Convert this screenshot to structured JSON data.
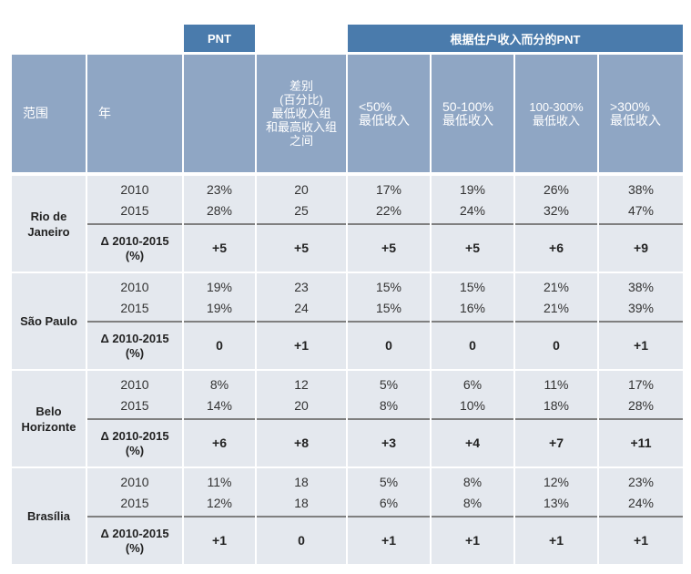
{
  "header": {
    "pnt": "PNT",
    "pnt_by_income": "根据住户收入而分的PNT",
    "columns": [
      "范围",
      "年",
      "",
      "差别\n(百分比)\n最低收入组\n和最高收入组\n之间",
      "<50%\n最低收入",
      "50-100%\n最低收入",
      "100-300%\n最低收入",
      ">300%\n最低收入"
    ]
  },
  "regions": [
    {
      "name": "Rio de\nJaneiro",
      "rows": [
        {
          "year": "2010",
          "values": [
            "23%",
            "20",
            "17%",
            "19%",
            "26%",
            "38%"
          ]
        },
        {
          "year": "2015",
          "values": [
            "28%",
            "25",
            "22%",
            "24%",
            "32%",
            "47%"
          ]
        }
      ],
      "delta": {
        "label": "Δ 2010-2015\n(%)",
        "values": [
          "+5",
          "+5",
          "+5",
          "+5",
          "+6",
          "+9"
        ]
      }
    },
    {
      "name": "São Paulo",
      "rows": [
        {
          "year": "2010",
          "values": [
            "19%",
            "23",
            "15%",
            "15%",
            "21%",
            "38%"
          ]
        },
        {
          "year": "2015",
          "values": [
            "19%",
            "24",
            "15%",
            "16%",
            "21%",
            "39%"
          ]
        }
      ],
      "delta": {
        "label": "Δ 2010-2015\n(%)",
        "values": [
          "0",
          "+1",
          "0",
          "0",
          "0",
          "+1"
        ]
      }
    },
    {
      "name": "Belo\nHorizonte",
      "rows": [
        {
          "year": "2010",
          "values": [
            "8%",
            "12",
            "5%",
            "6%",
            "11%",
            "17%"
          ]
        },
        {
          "year": "2015",
          "values": [
            "14%",
            "20",
            "8%",
            "10%",
            "18%",
            "28%"
          ]
        }
      ],
      "delta": {
        "label": "Δ 2010-2015\n(%)",
        "values": [
          "+6",
          "+8",
          "+3",
          "+4",
          "+7",
          "+11"
        ]
      }
    },
    {
      "name": "Brasília",
      "rows": [
        {
          "year": "2010",
          "values": [
            "11%",
            "18",
            "5%",
            "8%",
            "12%",
            "23%"
          ]
        },
        {
          "year": "2015",
          "values": [
            "12%",
            "18",
            "6%",
            "8%",
            "13%",
            "24%"
          ]
        }
      ],
      "delta": {
        "label": "Δ 2010-2015\n(%)",
        "values": [
          "+1",
          "0",
          "+1",
          "+1",
          "+1",
          "+1"
        ]
      }
    }
  ]
}
